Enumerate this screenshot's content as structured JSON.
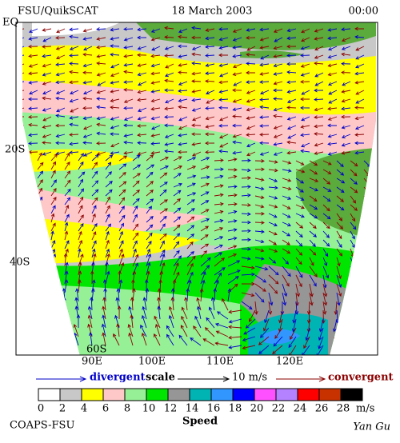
{
  "header": {
    "left": "FSU/QuikSCAT",
    "center": "18 March 2003",
    "right": "00:00"
  },
  "map": {
    "lat_labels": [
      "EQ",
      "20S",
      "40S",
      "60S"
    ],
    "lon_labels": [
      "90E",
      "100E",
      "110E",
      "120E"
    ]
  },
  "scale": {
    "divergent": "divergent",
    "scale_word": "scale",
    "speed": "10 m/s",
    "convergent": "convergent"
  },
  "colorbar": {
    "ticks": [
      0,
      2,
      4,
      6,
      8,
      10,
      12,
      14,
      16,
      18,
      20,
      22,
      24,
      26,
      28
    ],
    "colors": [
      "#ffffff",
      "#c8c8c8",
      "#ffff00",
      "#ffc8c8",
      "#96f096",
      "#00e600",
      "#969696",
      "#00b4b4",
      "#3296ff",
      "#0000ff",
      "#ff50ff",
      "#b482ff",
      "#ff0000",
      "#c83200",
      "#000000"
    ],
    "unit": "m/s",
    "label": "Speed"
  },
  "footer": {
    "left": "COAPS-FSU",
    "right": "Yan Gu"
  }
}
